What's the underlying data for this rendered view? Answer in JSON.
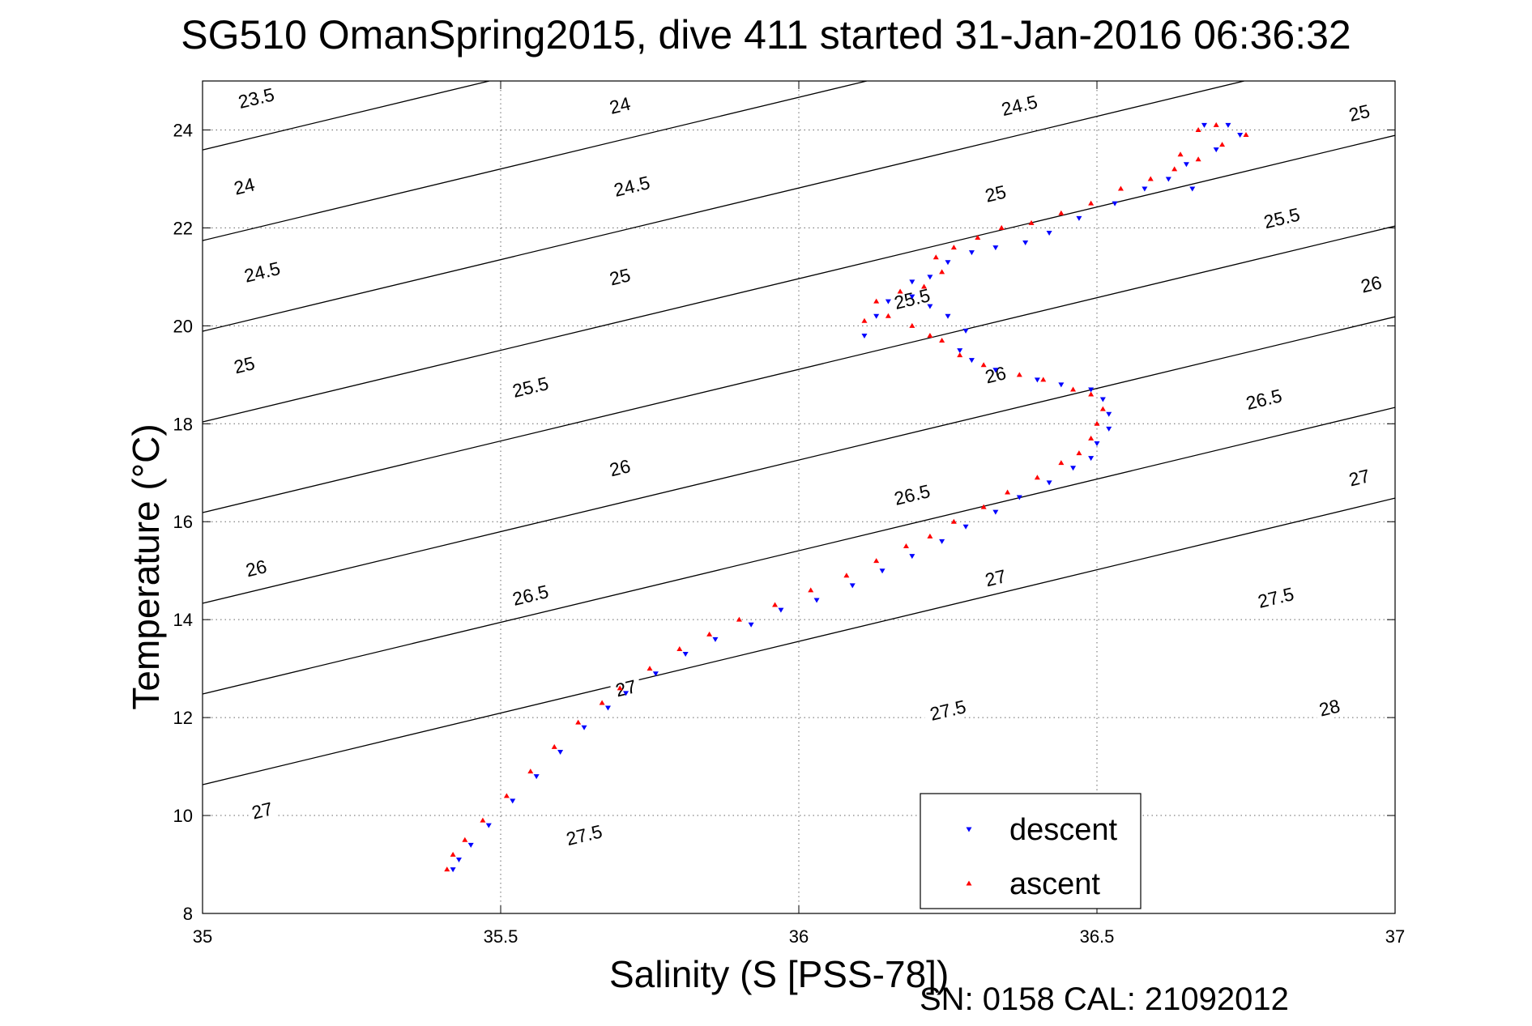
{
  "chart_data": {
    "type": "scatter",
    "title": "SG510 OmanSpring2015, dive 411 started 31-Jan-2016 06:36:32",
    "xlabel": "Salinity (S [PSS-78])",
    "ylabel": "Temperature (°C)",
    "xlim": [
      35,
      37
    ],
    "ylim": [
      8,
      25
    ],
    "x_ticks": [
      35,
      35.5,
      36,
      36.5,
      37
    ],
    "x_tick_labels": [
      "35",
      "35.5",
      "36",
      "36.5",
      "37"
    ],
    "y_ticks": [
      8,
      10,
      12,
      14,
      16,
      18,
      20,
      22,
      24
    ],
    "y_tick_labels": [
      "8",
      "10",
      "12",
      "14",
      "16",
      "18",
      "20",
      "22",
      "24"
    ],
    "grid": true,
    "legend_position": "bottom-center",
    "footnote": "SN: 0158  CAL: 21092012",
    "isopycnals": {
      "levels": [
        23.5,
        24,
        24.5,
        25,
        25.5,
        26,
        26.5,
        27,
        27.5,
        28
      ],
      "labels": [
        {
          "level": "23.5",
          "s": 35.09,
          "t": 24.65
        },
        {
          "level": "24",
          "s": 35.7,
          "t": 24.5
        },
        {
          "level": "24.5",
          "s": 36.37,
          "t": 24.5
        },
        {
          "level": "25",
          "s": 36.94,
          "t": 24.35
        },
        {
          "level": "24",
          "s": 35.07,
          "t": 22.85
        },
        {
          "level": "24.5",
          "s": 35.72,
          "t": 22.85
        },
        {
          "level": "25",
          "s": 36.33,
          "t": 22.7
        },
        {
          "level": "25.5",
          "s": 36.81,
          "t": 22.2
        },
        {
          "level": "24.5",
          "s": 35.1,
          "t": 21.1
        },
        {
          "level": "25",
          "s": 35.7,
          "t": 21.0
        },
        {
          "level": "25.5",
          "s": 36.19,
          "t": 20.55
        },
        {
          "level": "26",
          "s": 36.96,
          "t": 20.85
        },
        {
          "level": "25",
          "s": 35.07,
          "t": 19.2
        },
        {
          "level": "25.5",
          "s": 35.55,
          "t": 18.75
        },
        {
          "level": "26",
          "s": 36.33,
          "t": 19.0
        },
        {
          "level": "26.5",
          "s": 36.78,
          "t": 18.5
        },
        {
          "level": "26",
          "s": 35.7,
          "t": 17.1
        },
        {
          "level": "26.5",
          "s": 36.19,
          "t": 16.55
        },
        {
          "level": "27",
          "s": 36.94,
          "t": 16.9
        },
        {
          "level": "26",
          "s": 35.09,
          "t": 15.05
        },
        {
          "level": "26.5",
          "s": 35.55,
          "t": 14.5
        },
        {
          "level": "27",
          "s": 36.33,
          "t": 14.85
        },
        {
          "level": "27.5",
          "s": 36.8,
          "t": 14.45
        },
        {
          "level": "27",
          "s": 35.71,
          "t": 12.6
        },
        {
          "level": "27.5",
          "s": 36.25,
          "t": 12.15
        },
        {
          "level": "28",
          "s": 36.89,
          "t": 12.2
        },
        {
          "level": "27",
          "s": 35.1,
          "t": 10.1
        },
        {
          "level": "27.5",
          "s": 35.64,
          "t": 9.6
        }
      ]
    },
    "series": [
      {
        "name": "descent",
        "color": "#0000ff",
        "marker": "triangle-down",
        "x": [
          35.42,
          35.43,
          35.45,
          35.48,
          35.52,
          35.56,
          35.6,
          35.64,
          35.68,
          35.71,
          35.76,
          35.81,
          35.86,
          35.92,
          35.97,
          36.03,
          36.09,
          36.14,
          36.19,
          36.24,
          36.28,
          36.33,
          36.37,
          36.42,
          36.46,
          36.49,
          36.5,
          36.52,
          36.52,
          36.51,
          36.49,
          36.44,
          36.4,
          36.33,
          36.29,
          36.27,
          36.28,
          36.25,
          36.22,
          36.19,
          36.13,
          36.11,
          36.15,
          36.19,
          36.22,
          36.25,
          36.29,
          36.33,
          36.38,
          36.42,
          36.47,
          36.53,
          36.58,
          36.62,
          36.65,
          36.7,
          36.74,
          36.72,
          36.68,
          36.66
        ],
        "y": [
          8.9,
          9.1,
          9.4,
          9.8,
          10.3,
          10.8,
          11.3,
          11.8,
          12.2,
          12.5,
          12.9,
          13.3,
          13.6,
          13.9,
          14.2,
          14.4,
          14.7,
          15.0,
          15.3,
          15.6,
          15.9,
          16.2,
          16.5,
          16.8,
          17.1,
          17.3,
          17.6,
          17.9,
          18.2,
          18.5,
          18.7,
          18.8,
          18.9,
          19.1,
          19.3,
          19.5,
          19.9,
          20.2,
          20.4,
          20.6,
          20.2,
          19.8,
          20.5,
          20.9,
          21.0,
          21.3,
          21.5,
          21.6,
          21.7,
          21.9,
          22.2,
          22.5,
          22.8,
          23.0,
          23.3,
          23.6,
          23.9,
          24.1,
          24.1,
          22.8
        ]
      },
      {
        "name": "ascent",
        "color": "#ff0000",
        "marker": "triangle-up",
        "x": [
          35.41,
          35.42,
          35.44,
          35.47,
          35.51,
          35.55,
          35.59,
          35.63,
          35.67,
          35.7,
          35.75,
          35.8,
          35.85,
          35.9,
          35.96,
          36.02,
          36.08,
          36.13,
          36.18,
          36.22,
          36.26,
          36.31,
          36.35,
          36.4,
          36.44,
          36.47,
          36.49,
          36.5,
          36.51,
          36.49,
          36.46,
          36.41,
          36.37,
          36.31,
          36.27,
          36.24,
          36.22,
          36.19,
          36.15,
          36.11,
          36.13,
          36.17,
          36.21,
          36.24,
          36.23,
          36.26,
          36.3,
          36.34,
          36.39,
          36.44,
          36.49,
          36.54,
          36.59,
          36.63,
          36.67,
          36.71,
          36.75,
          36.7,
          36.67,
          36.64
        ],
        "y": [
          8.9,
          9.2,
          9.5,
          9.9,
          10.4,
          10.9,
          11.4,
          11.9,
          12.3,
          12.6,
          13.0,
          13.4,
          13.7,
          14.0,
          14.3,
          14.6,
          14.9,
          15.2,
          15.5,
          15.7,
          16.0,
          16.3,
          16.6,
          16.9,
          17.2,
          17.4,
          17.7,
          18.0,
          18.3,
          18.6,
          18.7,
          18.9,
          19.0,
          19.2,
          19.4,
          19.7,
          19.8,
          20.0,
          20.2,
          20.1,
          20.5,
          20.7,
          20.8,
          21.1,
          21.4,
          21.6,
          21.8,
          22.0,
          22.1,
          22.3,
          22.5,
          22.8,
          23.0,
          23.2,
          23.4,
          23.7,
          23.9,
          24.1,
          24.0,
          23.5
        ]
      }
    ]
  }
}
